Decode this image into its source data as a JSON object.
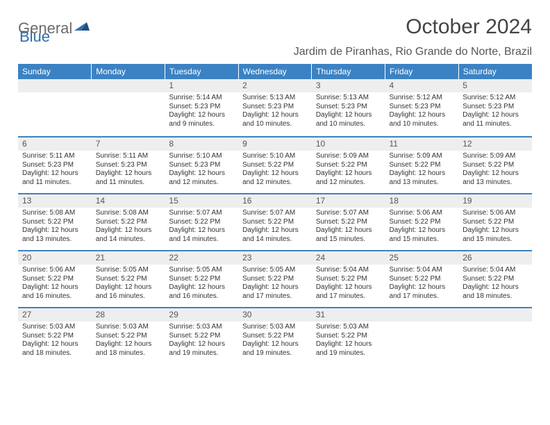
{
  "brand": {
    "word1": "General",
    "word2": "Blue"
  },
  "title": "October 2024",
  "location": "Jardim de Piranhas, Rio Grande do Norte, Brazil",
  "colors": {
    "header_bg": "#3b82c4",
    "header_text": "#ffffff",
    "daynum_bg": "#eeeeee",
    "row_border": "#3b82c4",
    "body_text": "#333333",
    "title_text": "#444444",
    "logo_gray": "#6b6b6b",
    "logo_blue": "#2f6fae"
  },
  "weekdays": [
    "Sunday",
    "Monday",
    "Tuesday",
    "Wednesday",
    "Thursday",
    "Friday",
    "Saturday"
  ],
  "labels": {
    "sunrise": "Sunrise:",
    "sunset": "Sunset:",
    "daylight": "Daylight:"
  },
  "weeks": [
    [
      {
        "day": "",
        "sunrise": "",
        "sunset": "",
        "daylight": "",
        "empty": true
      },
      {
        "day": "",
        "sunrise": "",
        "sunset": "",
        "daylight": "",
        "empty": true
      },
      {
        "day": "1",
        "sunrise": "5:14 AM",
        "sunset": "5:23 PM",
        "daylight": "12 hours and 9 minutes."
      },
      {
        "day": "2",
        "sunrise": "5:13 AM",
        "sunset": "5:23 PM",
        "daylight": "12 hours and 10 minutes."
      },
      {
        "day": "3",
        "sunrise": "5:13 AM",
        "sunset": "5:23 PM",
        "daylight": "12 hours and 10 minutes."
      },
      {
        "day": "4",
        "sunrise": "5:12 AM",
        "sunset": "5:23 PM",
        "daylight": "12 hours and 10 minutes."
      },
      {
        "day": "5",
        "sunrise": "5:12 AM",
        "sunset": "5:23 PM",
        "daylight": "12 hours and 11 minutes."
      }
    ],
    [
      {
        "day": "6",
        "sunrise": "5:11 AM",
        "sunset": "5:23 PM",
        "daylight": "12 hours and 11 minutes."
      },
      {
        "day": "7",
        "sunrise": "5:11 AM",
        "sunset": "5:23 PM",
        "daylight": "12 hours and 11 minutes."
      },
      {
        "day": "8",
        "sunrise": "5:10 AM",
        "sunset": "5:23 PM",
        "daylight": "12 hours and 12 minutes."
      },
      {
        "day": "9",
        "sunrise": "5:10 AM",
        "sunset": "5:22 PM",
        "daylight": "12 hours and 12 minutes."
      },
      {
        "day": "10",
        "sunrise": "5:09 AM",
        "sunset": "5:22 PM",
        "daylight": "12 hours and 12 minutes."
      },
      {
        "day": "11",
        "sunrise": "5:09 AM",
        "sunset": "5:22 PM",
        "daylight": "12 hours and 13 minutes."
      },
      {
        "day": "12",
        "sunrise": "5:09 AM",
        "sunset": "5:22 PM",
        "daylight": "12 hours and 13 minutes."
      }
    ],
    [
      {
        "day": "13",
        "sunrise": "5:08 AM",
        "sunset": "5:22 PM",
        "daylight": "12 hours and 13 minutes."
      },
      {
        "day": "14",
        "sunrise": "5:08 AM",
        "sunset": "5:22 PM",
        "daylight": "12 hours and 14 minutes."
      },
      {
        "day": "15",
        "sunrise": "5:07 AM",
        "sunset": "5:22 PM",
        "daylight": "12 hours and 14 minutes."
      },
      {
        "day": "16",
        "sunrise": "5:07 AM",
        "sunset": "5:22 PM",
        "daylight": "12 hours and 14 minutes."
      },
      {
        "day": "17",
        "sunrise": "5:07 AM",
        "sunset": "5:22 PM",
        "daylight": "12 hours and 15 minutes."
      },
      {
        "day": "18",
        "sunrise": "5:06 AM",
        "sunset": "5:22 PM",
        "daylight": "12 hours and 15 minutes."
      },
      {
        "day": "19",
        "sunrise": "5:06 AM",
        "sunset": "5:22 PM",
        "daylight": "12 hours and 15 minutes."
      }
    ],
    [
      {
        "day": "20",
        "sunrise": "5:06 AM",
        "sunset": "5:22 PM",
        "daylight": "12 hours and 16 minutes."
      },
      {
        "day": "21",
        "sunrise": "5:05 AM",
        "sunset": "5:22 PM",
        "daylight": "12 hours and 16 minutes."
      },
      {
        "day": "22",
        "sunrise": "5:05 AM",
        "sunset": "5:22 PM",
        "daylight": "12 hours and 16 minutes."
      },
      {
        "day": "23",
        "sunrise": "5:05 AM",
        "sunset": "5:22 PM",
        "daylight": "12 hours and 17 minutes."
      },
      {
        "day": "24",
        "sunrise": "5:04 AM",
        "sunset": "5:22 PM",
        "daylight": "12 hours and 17 minutes."
      },
      {
        "day": "25",
        "sunrise": "5:04 AM",
        "sunset": "5:22 PM",
        "daylight": "12 hours and 17 minutes."
      },
      {
        "day": "26",
        "sunrise": "5:04 AM",
        "sunset": "5:22 PM",
        "daylight": "12 hours and 18 minutes."
      }
    ],
    [
      {
        "day": "27",
        "sunrise": "5:03 AM",
        "sunset": "5:22 PM",
        "daylight": "12 hours and 18 minutes."
      },
      {
        "day": "28",
        "sunrise": "5:03 AM",
        "sunset": "5:22 PM",
        "daylight": "12 hours and 18 minutes."
      },
      {
        "day": "29",
        "sunrise": "5:03 AM",
        "sunset": "5:22 PM",
        "daylight": "12 hours and 19 minutes."
      },
      {
        "day": "30",
        "sunrise": "5:03 AM",
        "sunset": "5:22 PM",
        "daylight": "12 hours and 19 minutes."
      },
      {
        "day": "31",
        "sunrise": "5:03 AM",
        "sunset": "5:22 PM",
        "daylight": "12 hours and 19 minutes."
      },
      {
        "day": "",
        "sunrise": "",
        "sunset": "",
        "daylight": "",
        "empty": true
      },
      {
        "day": "",
        "sunrise": "",
        "sunset": "",
        "daylight": "",
        "empty": true
      }
    ]
  ]
}
